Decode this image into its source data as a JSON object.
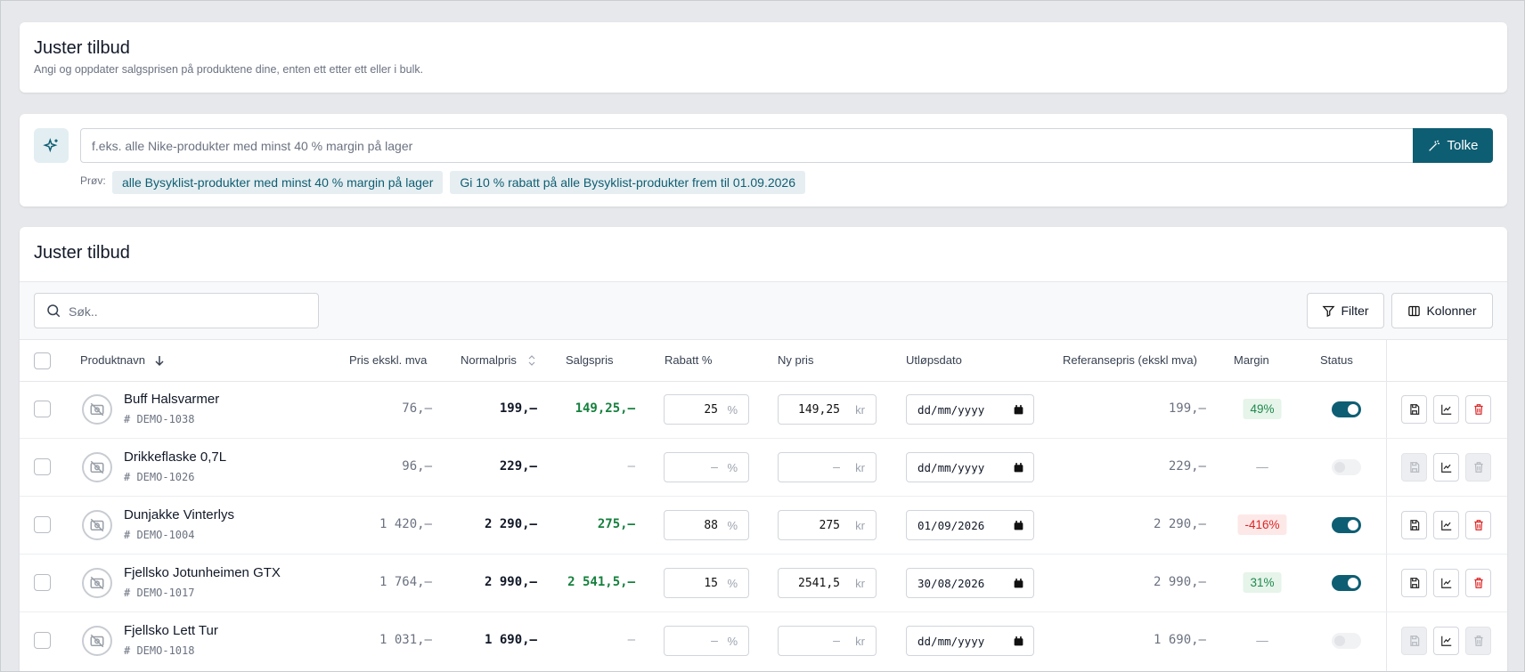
{
  "header": {
    "title": "Juster tilbud",
    "subtitle": "Angi og oppdater salgsprisen på produktene dine, enten ett etter ett eller i bulk."
  },
  "assistant": {
    "placeholder": "f.eks. alle Nike-produkter med minst 40 % margin på lager",
    "button": "Tolke",
    "try_label": "Prøv:",
    "suggestions": [
      "alle Bysyklist-produkter med minst 40 % margin på lager",
      "Gi 10 % rabatt på alle Bysyklist-produkter frem til 01.09.2026"
    ]
  },
  "table": {
    "title": "Juster tilbud",
    "search_placeholder": "Søk..",
    "buttons": [
      "Filter",
      "Kolonner"
    ],
    "columns": [
      "Produktnavn",
      "Pris ekskl. mva",
      "Normalpris",
      "Salgspris",
      "Rabatt %",
      "Ny pris",
      "Utløpsdato",
      "Referansepris (ekskl mva)",
      "Margin",
      "Status"
    ],
    "discount_unit": "%",
    "price_unit": "kr",
    "date_placeholder": "dd/mm/yyyy",
    "rows": [
      {
        "name": "Buff Halsvarmer",
        "sku": "# DEMO-1038",
        "cost": "76,–",
        "normal": "199,–",
        "sale": "149,25,–",
        "discount": "25",
        "new_price": "149,25",
        "expiry": null,
        "reference": "199,–",
        "margin": "49%",
        "margin_tone": "positive",
        "status": true
      },
      {
        "name": "Drikkeflaske 0,7L",
        "sku": "# DEMO-1026",
        "cost": "96,–",
        "normal": "229,–",
        "sale": "—",
        "discount": "—",
        "new_price": "—",
        "expiry": null,
        "reference": "229,–",
        "margin": "—",
        "margin_tone": "none",
        "status": false
      },
      {
        "name": "Dunjakke Vinterlys",
        "sku": "# DEMO-1004",
        "cost": "1 420,–",
        "normal": "2 290,–",
        "sale": "275,–",
        "discount": "88",
        "new_price": "275",
        "expiry": "01/09/2026",
        "reference": "2 290,–",
        "margin": "-416%",
        "margin_tone": "negative",
        "status": true
      },
      {
        "name": "Fjellsko Jotunheimen GTX",
        "sku": "# DEMO-1017",
        "cost": "1 764,–",
        "normal": "2 990,–",
        "sale": "2 541,5,–",
        "discount": "15",
        "new_price": "2541,5",
        "expiry": "30/08/2026",
        "reference": "2 990,–",
        "margin": "31%",
        "margin_tone": "positive",
        "status": true
      },
      {
        "name": "Fjellsko Lett Tur",
        "sku": "# DEMO-1018",
        "cost": "1 031,–",
        "normal": "1 690,–",
        "sale": "—",
        "discount": "—",
        "new_price": "—",
        "expiry": null,
        "reference": "1 690,–",
        "margin": "—",
        "margin_tone": "none",
        "status": false
      }
    ]
  }
}
